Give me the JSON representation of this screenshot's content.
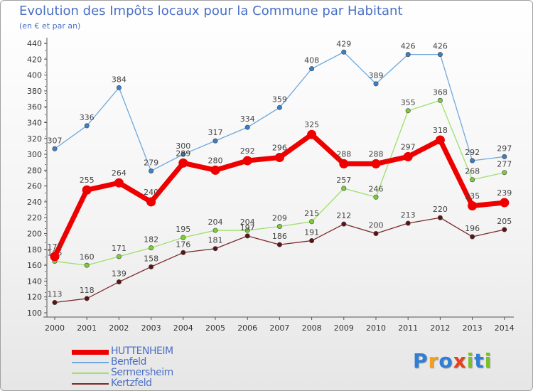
{
  "header": {
    "title": "Evolution des Impôts locaux pour la Commune par Habitant",
    "subtitle": "(en € et par an)"
  },
  "logo": {
    "letters": [
      "P",
      "r",
      "o",
      "x",
      "i",
      "t",
      "i"
    ],
    "colors": [
      "#2f7fd6",
      "#f2a01e",
      "#2f7fd6",
      "#e8401c",
      "#7bbf2a",
      "#2f7fd6",
      "#7bbf2a"
    ]
  },
  "chart_data": {
    "type": "line",
    "x": [
      "2000",
      "2001",
      "2002",
      "2003",
      "2004",
      "2005",
      "2006",
      "2007",
      "2008",
      "2009",
      "2010",
      "2011",
      "2012",
      "2013",
      "2014"
    ],
    "ylim": [
      100,
      440
    ],
    "yticks": [
      100,
      120,
      140,
      160,
      180,
      200,
      220,
      240,
      260,
      280,
      300,
      320,
      340,
      360,
      380,
      400,
      420,
      440
    ],
    "grid": false,
    "legend_position": "bottom-left",
    "series": [
      {
        "name": "Benfeld",
        "color": "#6fa8dc",
        "marker": "#3d7fc4",
        "width": 1.3,
        "values": [
          307,
          336,
          384,
          279,
          300,
          317,
          334,
          359,
          408,
          429,
          389,
          426,
          426,
          292,
          297
        ]
      },
      {
        "name": "Sermersheim",
        "color": "#9ee06a",
        "marker": "#7ccd3a",
        "width": 1.3,
        "values": [
          165,
          160,
          171,
          182,
          195,
          204,
          204,
          209,
          215,
          257,
          246,
          355,
          368,
          268,
          277
        ]
      },
      {
        "name": "Kertzfeld",
        "color": "#7a2a2a",
        "marker": "#5a1414",
        "width": 1.3,
        "values": [
          113,
          118,
          139,
          158,
          176,
          181,
          197,
          186,
          191,
          212,
          200,
          213,
          220,
          196,
          205
        ]
      },
      {
        "name": "HUTTENHEIM",
        "color": "#ee0000",
        "marker": "#ee0000",
        "width": 7,
        "values": [
          171,
          255,
          264,
          240,
          289,
          280,
          292,
          296,
          325,
          288,
          288,
          297,
          318,
          235,
          239
        ]
      }
    ],
    "legend_order": [
      "HUTTENHEIM",
      "Benfeld",
      "Sermersheim",
      "Kertzfeld"
    ]
  }
}
